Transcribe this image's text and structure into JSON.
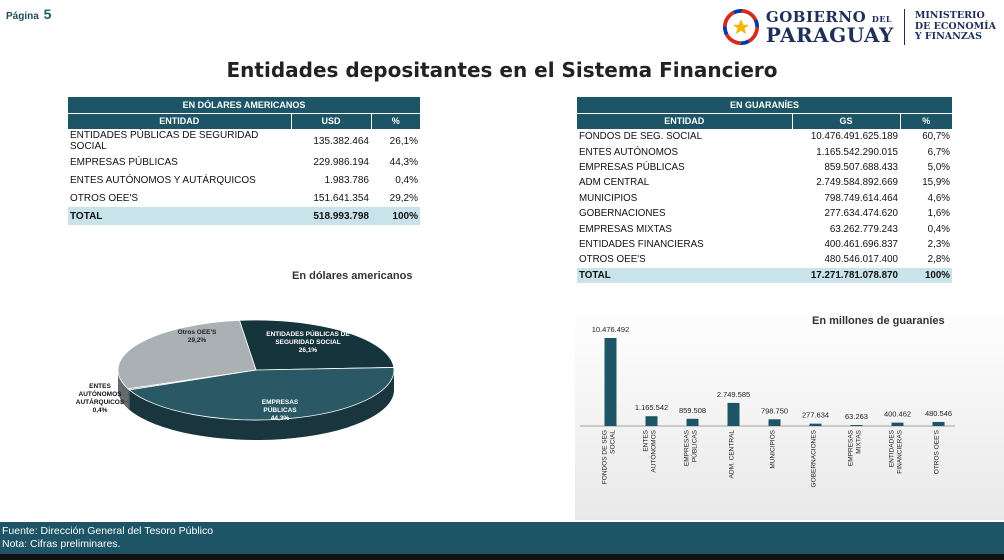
{
  "page": {
    "label": "Página",
    "number": "5"
  },
  "logo": {
    "line1": "GOBIERNO",
    "line1_small": "DEL",
    "line2": "PARAGUAY",
    "ministry": [
      "MINISTERIO",
      "DE ECONOMÍA",
      "Y FINANZAS"
    ]
  },
  "title": "Entidades depositantes en el Sistema Financiero",
  "usd_table": {
    "caption": "EN DÓLARES AMERICANOS",
    "headers": [
      "ENTIDAD",
      "USD",
      "%"
    ],
    "rows": [
      [
        "ENTIDADES PÚBLICAS DE SEGURIDAD SOCIAL",
        "135.382.464",
        "26,1%"
      ],
      [
        "EMPRESAS PÚBLICAS",
        "229.986.194",
        "44,3%"
      ],
      [
        "ENTES AUTÓNOMOS Y AUTÁRQUICOS",
        "1.983.786",
        "0,4%"
      ],
      [
        "OTROS OEE'S",
        "151.641.354",
        "29,2%"
      ]
    ],
    "total": [
      "TOTAL",
      "518.993.798",
      "100%"
    ]
  },
  "gs_table": {
    "caption": "EN GUARANÍES",
    "headers": [
      "ENTIDAD",
      "GS",
      "%"
    ],
    "rows": [
      [
        "FONDOS DE SEG. SOCIAL",
        "10.476.491.625.189",
        "60,7%"
      ],
      [
        "ENTES AUTÓNOMOS",
        "1.165.542.290.015",
        "6,7%"
      ],
      [
        "EMPRESAS PÚBLICAS",
        "859.507.688.433",
        "5,0%"
      ],
      [
        "ADM CENTRAL",
        "2.749.584.892.669",
        "15,9%"
      ],
      [
        "MUNICIPIOS",
        "798.749.614.464",
        "4,6%"
      ],
      [
        "GOBERNACIONES",
        "277.634.474.620",
        "1,6%"
      ],
      [
        "EMPRESAS MIXTAS",
        "63.262.779.243",
        "0,4%"
      ],
      [
        "ENTIDADES FINANCIERAS",
        "400.461.696.837",
        "2,3%"
      ],
      [
        "OTROS OEE'S",
        "480.546.017.400",
        "2,8%"
      ]
    ],
    "total": [
      "TOTAL",
      "17.271.781.078.870",
      "100%"
    ]
  },
  "chart_data": [
    {
      "type": "pie",
      "title": "En dólares americanos",
      "slices": [
        {
          "label": [
            "ENTIDADES PÚBLICAS DE",
            "SEGURIDAD SOCIAL"
          ],
          "pct_label": "26,1%",
          "value": 26.1,
          "color": "#16343c"
        },
        {
          "label": [
            "EMPRESAS",
            "PÚBLICAS"
          ],
          "pct_label": "44,3%",
          "value": 44.3,
          "color": "#2a5965"
        },
        {
          "label": [
            "ENTES",
            "AUTÓNOMOS",
            "AUTÁRQUICOS"
          ],
          "pct_label": "0,4%",
          "value": 0.4,
          "color": "#7f9aa0"
        },
        {
          "label": [
            "Otros OEE'S"
          ],
          "pct_label": "29,2%",
          "value": 29.2,
          "color": "#a9b1b5"
        }
      ]
    },
    {
      "type": "bar",
      "title": "En millones de guaraníes",
      "categories": [
        "FONDOS DE SEG. SOCIAL",
        "ENTES AUTÓNOMOS",
        "EMPRESAS PÚBLICAS",
        "ADM. CENTRAL",
        "MUNICIPIOS",
        "GOBERNACIONES",
        "EMPRESAS MIXTAS",
        "ENTIDADES FINANCIERAS",
        "OTROS OEE'S"
      ],
      "tick_labels": [
        [
          "FONDOS DE SEG",
          "SOCIAL"
        ],
        [
          "ENTES",
          "AUTÓNOMOS"
        ],
        [
          "EMPRESAS",
          "PÚBLICAS"
        ],
        [
          "ADM. CENTRAL"
        ],
        [
          "MUNICIPIOS"
        ],
        [
          "GOBERNACIONES"
        ],
        [
          "EMPRESAS",
          "MIXTAS"
        ],
        [
          "ENTIDADES",
          "FINANCIERAS"
        ],
        [
          "OTROS OEE'S"
        ]
      ],
      "values": [
        10476.492,
        1165.542,
        859.508,
        2749.585,
        798.75,
        277.634,
        63.263,
        400.462,
        480.546
      ],
      "value_labels": [
        "10.476.492",
        "1.165.542",
        "859.508",
        "2.749.585",
        "798.750",
        "277.634",
        "63.263",
        "400.462",
        "480.546"
      ],
      "ylim": [
        0,
        10476.492
      ],
      "bar_color": "#1d5566"
    }
  ],
  "footer": {
    "source": "Fuente: Dirección General del Tesoro Público",
    "note": "Nota: Cifras preliminares."
  },
  "colors": {
    "primary": "#1d5566",
    "total_row": "#c9e3ea"
  }
}
